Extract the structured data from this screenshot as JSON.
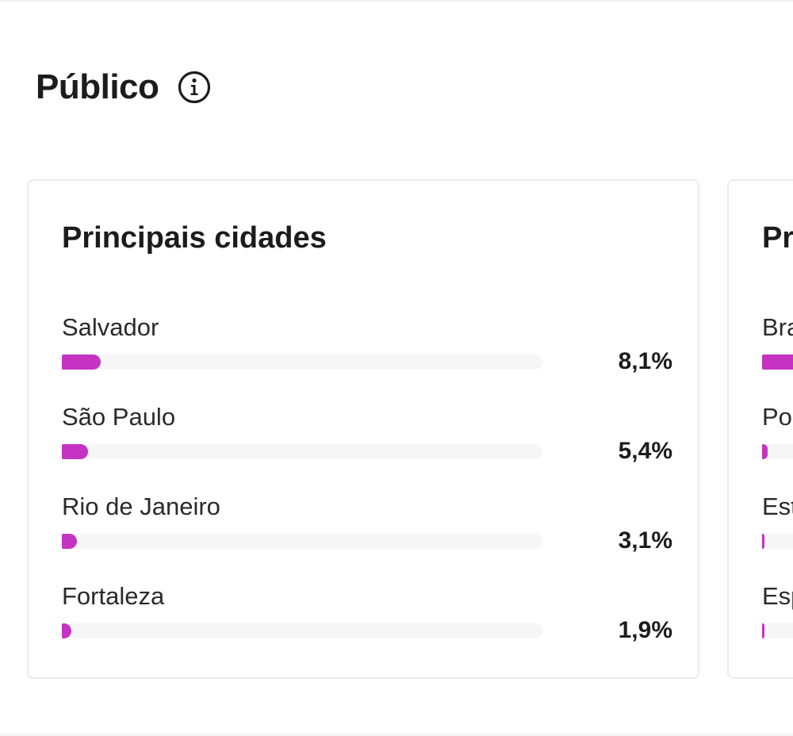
{
  "section": {
    "title": "Público",
    "info_icon": "info-icon"
  },
  "colors": {
    "bar_fill": "#c433c2",
    "bar_track": "#f6f6f6",
    "card_border": "#ececec"
  },
  "cities_card": {
    "title": "Principais cidades",
    "rows": [
      {
        "label": "Salvador",
        "value": "8,1%",
        "fill_fraction": 0.081
      },
      {
        "label": "São Paulo",
        "value": "5,4%",
        "fill_fraction": 0.054
      },
      {
        "label": "Rio de Janeiro",
        "value": "3,1%",
        "fill_fraction": 0.031
      },
      {
        "label": "Fortaleza",
        "value": "1,9%",
        "fill_fraction": 0.019
      }
    ]
  },
  "countries_card": {
    "title": "Pr",
    "rows": [
      {
        "label": "Bra",
        "fill_fraction": 0.9
      },
      {
        "label": "Po",
        "fill_fraction": 0.012
      },
      {
        "label": "Est",
        "fill_fraction": 0.004
      },
      {
        "label": "Esp",
        "fill_fraction": 0.002
      }
    ]
  }
}
